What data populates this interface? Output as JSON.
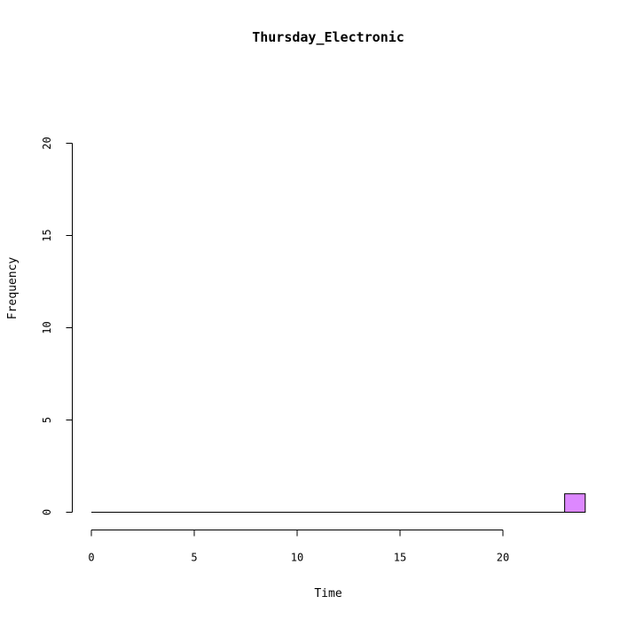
{
  "chart_data": {
    "type": "bar",
    "title": "Thursday_Electronic",
    "xlabel": "Time",
    "ylabel": "Frequency",
    "xlim": [
      0,
      24
    ],
    "ylim": [
      0,
      20
    ],
    "x_ticks": [
      0,
      5,
      10,
      15,
      20
    ],
    "y_ticks": [
      0,
      5,
      10,
      15,
      20
    ],
    "bin_width": 1,
    "bins": [
      {
        "start": 0,
        "end": 23,
        "count": 0
      },
      {
        "start": 23,
        "end": 24,
        "count": 1
      }
    ],
    "bar_color": "#dd88ff",
    "grid": false
  }
}
